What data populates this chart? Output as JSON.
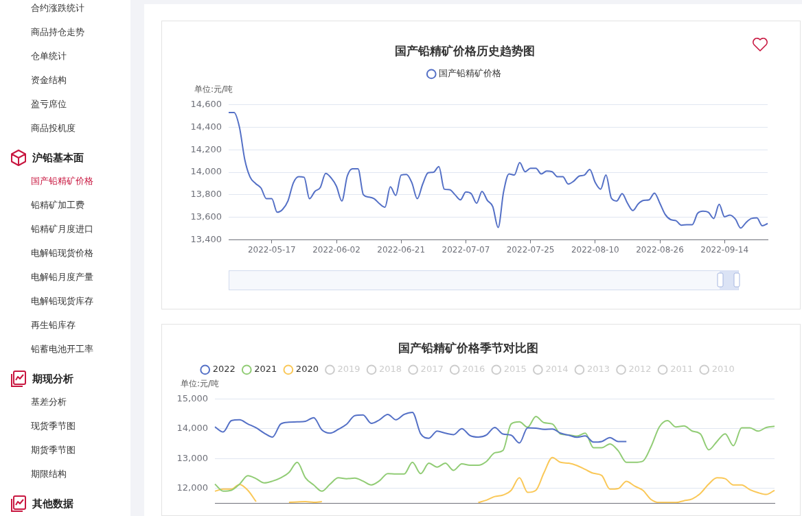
{
  "chart_data": [
    {
      "type": "line",
      "title": "国产铅精矿价格历史趋势图",
      "ylabel": "单位:元/吨",
      "grid": "y",
      "legend": "top",
      "marker": "none",
      "categories": [
        null,
        null,
        null,
        null,
        null,
        null,
        null,
        null,
        "2022-05-17",
        null,
        null,
        null,
        null,
        null,
        null,
        null,
        null,
        null,
        null,
        null,
        "2022-06-02",
        null,
        null,
        null,
        null,
        null,
        null,
        null,
        null,
        null,
        null,
        null,
        "2022-06-21",
        null,
        null,
        null,
        null,
        null,
        null,
        null,
        null,
        null,
        null,
        null,
        "2022-07-07",
        null,
        null,
        null,
        null,
        null,
        null,
        null,
        null,
        null,
        null,
        null,
        "2022-07-25",
        null,
        null,
        null,
        null,
        null,
        null,
        null,
        null,
        null,
        null,
        null,
        "2022-08-10",
        null,
        null,
        null,
        null,
        null,
        null,
        null,
        null,
        null,
        null,
        null,
        "2022-08-26",
        null,
        null,
        null,
        null,
        null,
        null,
        null,
        null,
        null,
        null,
        null,
        "2022-09-14",
        null,
        null,
        null,
        null,
        null,
        null,
        null,
        null
      ],
      "ylim": [
        13400,
        14600
      ],
      "yticks": [
        {
          "value": 13400,
          "label": "13,400"
        },
        {
          "value": 13600,
          "label": "13,600"
        },
        {
          "value": 13800,
          "label": "13,800"
        },
        {
          "value": 14000,
          "label": "14,000"
        },
        {
          "value": 14200,
          "label": "14,200"
        },
        {
          "value": 14400,
          "label": "14,400"
        },
        {
          "value": 14600,
          "label": "14,600"
        }
      ],
      "series": [
        {
          "name": "国产铅精矿价格",
          "color": "#5470c6",
          "values": [
            14530,
            14530,
            14400,
            14110,
            13955,
            13900,
            13860,
            13765,
            13765,
            13645,
            13670,
            13745,
            13905,
            13960,
            13955,
            13765,
            13830,
            13865,
            13990,
            13950,
            13875,
            13745,
            13965,
            14030,
            14030,
            13800,
            13780,
            13765,
            13720,
            13690,
            13870,
            13795,
            13975,
            13980,
            13905,
            13765,
            13895,
            13995,
            14000,
            14050,
            13850,
            13845,
            13800,
            13755,
            13825,
            13810,
            13725,
            13830,
            13750,
            13695,
            13510,
            13825,
            13985,
            13975,
            14085,
            14005,
            14035,
            14035,
            13985,
            14010,
            14005,
            13960,
            13960,
            13895,
            13920,
            13965,
            13975,
            14025,
            13910,
            13850,
            13975,
            13770,
            13745,
            13810,
            13725,
            13660,
            13720,
            13750,
            13755,
            13815,
            13725,
            13625,
            13580,
            13570,
            13530,
            13535,
            13535,
            13635,
            13655,
            13645,
            13590,
            13715,
            13605,
            13620,
            13585,
            13505,
            13555,
            13590,
            13595,
            13525,
            13545
          ]
        }
      ]
    },
    {
      "type": "line",
      "title": "国产铅精矿价格季节对比图",
      "ylabel": "单位:元/吨",
      "grid": "y",
      "legend": "top",
      "marker": "none",
      "tick_labels": "y",
      "categories": [
        null,
        null,
        null,
        null,
        null,
        null,
        null,
        null,
        null,
        null,
        null,
        null,
        null,
        null,
        null,
        null,
        null,
        null,
        null,
        null,
        null,
        null,
        null,
        null,
        null,
        null,
        null,
        null,
        null,
        null,
        null,
        null,
        null,
        null,
        null,
        null,
        null,
        null,
        null,
        null,
        null,
        null,
        null,
        null,
        null,
        null,
        null,
        null,
        null,
        null,
        null,
        null,
        null,
        null,
        null,
        null,
        null,
        null,
        null,
        null,
        null,
        null,
        null,
        null,
        null,
        null,
        null,
        null,
        null
      ],
      "ylim": [
        11500,
        15000
      ],
      "yticks": [
        {
          "value": 12000,
          "label": "12,000"
        },
        {
          "value": 13000,
          "label": "13,000"
        },
        {
          "value": 14000,
          "label": "14,000"
        },
        {
          "value": 15000,
          "label": "15,000"
        }
      ],
      "series": [
        {
          "name": "2022",
          "color": "#5470c6",
          "values": [
            14060,
            13890,
            14270,
            14300,
            14160,
            14030,
            13850,
            13720,
            14160,
            14220,
            14230,
            14250,
            14370,
            13960,
            13850,
            13980,
            14150,
            14440,
            14460,
            14180,
            14300,
            14480,
            14300,
            14480,
            14550,
            13830,
            13680,
            13920,
            13850,
            13800,
            14000,
            13770,
            13720,
            13790,
            14040,
            13820,
            13780,
            13520,
            14030,
            14020,
            13980,
            13990,
            13850,
            13780,
            13710,
            13760,
            13550,
            13570,
            13700,
            13570,
            13570,
            null,
            null,
            null,
            null,
            null,
            null,
            null,
            null,
            null,
            null,
            null,
            null,
            null,
            null,
            null,
            null,
            null,
            null
          ]
        },
        {
          "name": "2021",
          "color": "#91cc75",
          "values": [
            12140,
            11900,
            11930,
            12140,
            12420,
            12320,
            12180,
            12240,
            12350,
            12530,
            12870,
            12350,
            12110,
            11900,
            12140,
            12350,
            12320,
            12340,
            12240,
            12110,
            12250,
            12490,
            12480,
            12480,
            12870,
            12490,
            12840,
            12710,
            12840,
            12600,
            12820,
            12770,
            12770,
            12900,
            13190,
            13270,
            14160,
            14230,
            14050,
            14410,
            14200,
            14160,
            13820,
            13790,
            13750,
            13850,
            13360,
            13360,
            13490,
            13260,
            12870,
            12870,
            12910,
            13400,
            14060,
            14270,
            14060,
            14090,
            13920,
            13820,
            13290,
            13570,
            13830,
            13430,
            14030,
            14030,
            13920,
            14040,
            14080
          ]
        },
        {
          "name": "2020",
          "color": "#fac858",
          "values": [
            11900,
            11970,
            11970,
            12130,
            11930,
            11550,
            null,
            null,
            null,
            11530,
            11540,
            11550,
            11530,
            11550,
            null,
            null,
            null,
            null,
            null,
            null,
            null,
            null,
            null,
            null,
            null,
            null,
            null,
            null,
            null,
            null,
            null,
            null,
            11520,
            11600,
            11720,
            11770,
            11930,
            12350,
            11860,
            11930,
            12530,
            13030,
            12870,
            12840,
            12760,
            12630,
            12500,
            12430,
            11970,
            11990,
            12230,
            12070,
            11930,
            11620,
            11520,
            11520,
            11520,
            11580,
            11640,
            11830,
            12140,
            12350,
            12320,
            12110,
            12110,
            11950,
            11850,
            11790,
            11930
          ]
        },
        {
          "name": "2019",
          "color": "#cccccc",
          "values": [
            null,
            null,
            null,
            null,
            null,
            null,
            null,
            null,
            null,
            null,
            null,
            null,
            null,
            null,
            null,
            null,
            null,
            null,
            null,
            null,
            null,
            null,
            null,
            null,
            null,
            null,
            null,
            null,
            null,
            null,
            null,
            null,
            null,
            null,
            null,
            null,
            null,
            null,
            null,
            null,
            null,
            null,
            null,
            null,
            null,
            null,
            null,
            null,
            null,
            null,
            null,
            null,
            null,
            null,
            null,
            null,
            null,
            null,
            null,
            null,
            null,
            null,
            null,
            null,
            null,
            null,
            null,
            null,
            null
          ]
        },
        {
          "name": "2018",
          "color": "#cccccc",
          "values": [
            null,
            null,
            null,
            null,
            null,
            null,
            null,
            null,
            null,
            null,
            null,
            null,
            null,
            null,
            null,
            null,
            null,
            null,
            null,
            null,
            null,
            null,
            null,
            null,
            null,
            null,
            null,
            null,
            null,
            null,
            null,
            null,
            null,
            null,
            null,
            null,
            null,
            null,
            null,
            null,
            null,
            null,
            null,
            null,
            null,
            null,
            null,
            null,
            null,
            null,
            null,
            null,
            null,
            null,
            null,
            null,
            null,
            null,
            null,
            null,
            null,
            null,
            null,
            null,
            null,
            null,
            null,
            null,
            null
          ]
        },
        {
          "name": "2017",
          "color": "#cccccc",
          "values": [
            null,
            null,
            null,
            null,
            null,
            null,
            null,
            null,
            null,
            null,
            null,
            null,
            null,
            null,
            null,
            null,
            null,
            null,
            null,
            null,
            null,
            null,
            null,
            null,
            null,
            null,
            null,
            null,
            null,
            null,
            null,
            null,
            null,
            null,
            null,
            null,
            null,
            null,
            null,
            null,
            null,
            null,
            null,
            null,
            null,
            null,
            null,
            null,
            null,
            null,
            null,
            null,
            null,
            null,
            null,
            null,
            null,
            null,
            null,
            null,
            null,
            null,
            null,
            null,
            null,
            null,
            null,
            null,
            null
          ]
        },
        {
          "name": "2016",
          "color": "#cccccc",
          "values": [
            null,
            null,
            null,
            null,
            null,
            null,
            null,
            null,
            null,
            null,
            null,
            null,
            null,
            null,
            null,
            null,
            null,
            null,
            null,
            null,
            null,
            null,
            null,
            null,
            null,
            null,
            null,
            null,
            null,
            null,
            null,
            null,
            null,
            null,
            null,
            null,
            null,
            null,
            null,
            null,
            null,
            null,
            null,
            null,
            null,
            null,
            null,
            null,
            null,
            null,
            null,
            null,
            null,
            null,
            null,
            null,
            null,
            null,
            null,
            null,
            null,
            null,
            null,
            null,
            null,
            null,
            null,
            null,
            null
          ]
        },
        {
          "name": "2015",
          "color": "#cccccc",
          "values": [
            null,
            null,
            null,
            null,
            null,
            null,
            null,
            null,
            null,
            null,
            null,
            null,
            null,
            null,
            null,
            null,
            null,
            null,
            null,
            null,
            null,
            null,
            null,
            null,
            null,
            null,
            null,
            null,
            null,
            null,
            null,
            null,
            null,
            null,
            null,
            null,
            null,
            null,
            null,
            null,
            null,
            null,
            null,
            null,
            null,
            null,
            null,
            null,
            null,
            null,
            null,
            null,
            null,
            null,
            null,
            null,
            null,
            null,
            null,
            null,
            null,
            null,
            null,
            null,
            null,
            null,
            null,
            null,
            null
          ]
        },
        {
          "name": "2014",
          "color": "#cccccc",
          "values": [
            null,
            null,
            null,
            null,
            null,
            null,
            null,
            null,
            null,
            null,
            null,
            null,
            null,
            null,
            null,
            null,
            null,
            null,
            null,
            null,
            null,
            null,
            null,
            null,
            null,
            null,
            null,
            null,
            null,
            null,
            null,
            null,
            null,
            null,
            null,
            null,
            null,
            null,
            null,
            null,
            null,
            null,
            null,
            null,
            null,
            null,
            null,
            null,
            null,
            null,
            null,
            null,
            null,
            null,
            null,
            null,
            null,
            null,
            null,
            null,
            null,
            null,
            null,
            null,
            null,
            null,
            null,
            null,
            null
          ]
        },
        {
          "name": "2013",
          "color": "#cccccc",
          "values": [
            null,
            null,
            null,
            null,
            null,
            null,
            null,
            null,
            null,
            null,
            null,
            null,
            null,
            null,
            null,
            null,
            null,
            null,
            null,
            null,
            null,
            null,
            null,
            null,
            null,
            null,
            null,
            null,
            null,
            null,
            null,
            null,
            null,
            null,
            null,
            null,
            null,
            null,
            null,
            null,
            null,
            null,
            null,
            null,
            null,
            null,
            null,
            null,
            null,
            null,
            null,
            null,
            null,
            null,
            null,
            null,
            null,
            null,
            null,
            null,
            null,
            null,
            null,
            null,
            null,
            null,
            null,
            null,
            null
          ]
        },
        {
          "name": "2012",
          "color": "#cccccc",
          "values": [
            null,
            null,
            null,
            null,
            null,
            null,
            null,
            null,
            null,
            null,
            null,
            null,
            null,
            null,
            null,
            null,
            null,
            null,
            null,
            null,
            null,
            null,
            null,
            null,
            null,
            null,
            null,
            null,
            null,
            null,
            null,
            null,
            null,
            null,
            null,
            null,
            null,
            null,
            null,
            null,
            null,
            null,
            null,
            null,
            null,
            null,
            null,
            null,
            null,
            null,
            null,
            null,
            null,
            null,
            null,
            null,
            null,
            null,
            null,
            null,
            null,
            null,
            null,
            null,
            null,
            null,
            null,
            null,
            null
          ]
        },
        {
          "name": "2011",
          "color": "#cccccc",
          "values": [
            null,
            null,
            null,
            null,
            null,
            null,
            null,
            null,
            null,
            null,
            null,
            null,
            null,
            null,
            null,
            null,
            null,
            null,
            null,
            null,
            null,
            null,
            null,
            null,
            null,
            null,
            null,
            null,
            null,
            null,
            null,
            null,
            null,
            null,
            null,
            null,
            null,
            null,
            null,
            null,
            null,
            null,
            null,
            null,
            null,
            null,
            null,
            null,
            null,
            null,
            null,
            null,
            null,
            null,
            null,
            null,
            null,
            null,
            null,
            null,
            null,
            null,
            null,
            null,
            null,
            null,
            null,
            null,
            null
          ]
        },
        {
          "name": "2010",
          "color": "#cccccc",
          "values": [
            null,
            null,
            null,
            null,
            null,
            null,
            null,
            null,
            null,
            null,
            null,
            null,
            null,
            null,
            null,
            null,
            null,
            null,
            null,
            null,
            null,
            null,
            null,
            null,
            null,
            null,
            null,
            null,
            null,
            null,
            null,
            null,
            null,
            null,
            null,
            null,
            null,
            null,
            null,
            null,
            null,
            null,
            null,
            null,
            null,
            null,
            null,
            null,
            null,
            null,
            null,
            null,
            null,
            null,
            null,
            null,
            null,
            null,
            null,
            null,
            null,
            null,
            null,
            null,
            null,
            null,
            null,
            null,
            null
          ]
        }
      ]
    },
    {
      "type": "other",
      "annotations": [
        "合约涨跌统计",
        "商品持仓走势",
        "仓单统计",
        "资金结构",
        "盈亏席位",
        "商品投机度",
        "沪铅基本面",
        "国产铅精矿价格",
        "铅精矿加工费",
        "铅精矿月度进口",
        "电解铅现货价格",
        "电解铅月度产量",
        "电解铅现货库存",
        "再生铅库存",
        "铅蓄电池开工率",
        "期现分析",
        "基差分析",
        "现货季节图",
        "期货季节图",
        "期限结构",
        "其他数据"
      ]
    }
  ]
}
